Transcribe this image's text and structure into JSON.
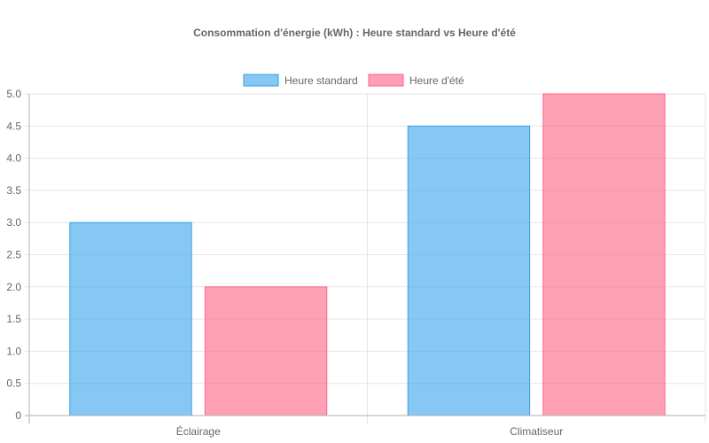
{
  "chart_data": {
    "type": "bar",
    "title": "Consommation d'énergie (kWh) : Heure standard vs Heure d'été",
    "categories": [
      "Éclairage",
      "Climatiseur"
    ],
    "series": [
      {
        "name": "Heure standard",
        "values": [
          3.0,
          4.5
        ],
        "color": "#36a2eb"
      },
      {
        "name": "Heure d'été",
        "values": [
          2.0,
          5.0
        ],
        "color": "#ff6384"
      }
    ],
    "ylim": [
      0,
      5
    ],
    "yticks": [
      "0",
      "0.5",
      "1.0",
      "1.5",
      "2.0",
      "2.5",
      "3.0",
      "3.5",
      "4.0",
      "4.5",
      "5.0"
    ],
    "grid": true,
    "legend_position": "top-center"
  }
}
